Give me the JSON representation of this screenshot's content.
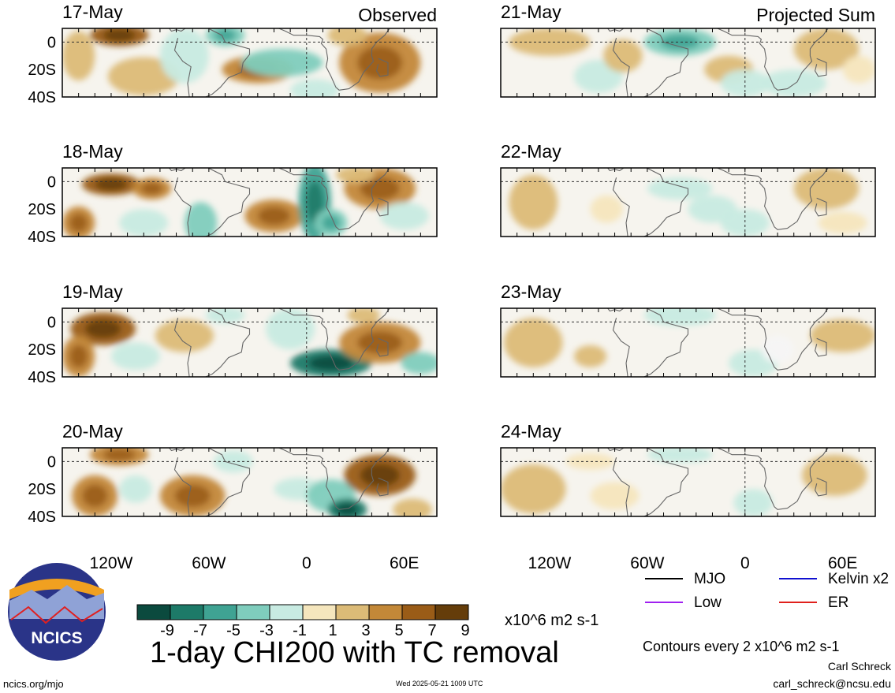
{
  "chart_data": {
    "type": "heatmap",
    "title": "1-day CHI200 with TC removal",
    "colorbar": {
      "ticks": [
        "-9",
        "-7",
        "-5",
        "-3",
        "-1",
        "1",
        "3",
        "5",
        "7",
        "9"
      ],
      "unit": "x10^6 m2 s-1",
      "colors": [
        "#0b4a3e",
        "#1d7a68",
        "#3fa393",
        "#7fcdbd",
        "#c8ebe2",
        "#f5f5f5",
        "#f5e6bd",
        "#dcbb77",
        "#c38838",
        "#9a5c17",
        "#653d0a"
      ]
    },
    "x_ticks": [
      "120W",
      "60W",
      "0",
      "60E"
    ],
    "y_ticks": [
      "0",
      "20S",
      "40S"
    ],
    "columns": [
      {
        "header": "Observed",
        "panels": [
          {
            "date": "17-May",
            "blobs": [
              {
                "lon": -115,
                "lat": 5,
                "rx": 18,
                "ry": 8,
                "v": 7
              },
              {
                "lon": -140,
                "lat": -10,
                "rx": 10,
                "ry": 18,
                "v": 4
              },
              {
                "lon": -100,
                "lat": -25,
                "rx": 22,
                "ry": 14,
                "v": 3
              },
              {
                "lon": -75,
                "lat": -10,
                "rx": 15,
                "ry": 20,
                "v": -2
              },
              {
                "lon": -50,
                "lat": 5,
                "rx": 12,
                "ry": 8,
                "v": -5
              },
              {
                "lon": -30,
                "lat": -20,
                "rx": 22,
                "ry": 10,
                "v": 5
              },
              {
                "lon": -15,
                "lat": -15,
                "rx": 25,
                "ry": 10,
                "v": -4
              },
              {
                "lon": 5,
                "lat": -35,
                "rx": 15,
                "ry": 8,
                "v": -3
              },
              {
                "lon": 45,
                "lat": -15,
                "rx": 25,
                "ry": 22,
                "v": 6
              },
              {
                "lon": 25,
                "lat": 5,
                "rx": 12,
                "ry": 8,
                "v": 3
              }
            ]
          },
          {
            "date": "18-May",
            "blobs": [
              {
                "lon": -120,
                "lat": -2,
                "rx": 18,
                "ry": 8,
                "v": 7
              },
              {
                "lon": -140,
                "lat": -30,
                "rx": 10,
                "ry": 12,
                "v": 5
              },
              {
                "lon": -95,
                "lat": -5,
                "rx": 12,
                "ry": 8,
                "v": 5
              },
              {
                "lon": -100,
                "lat": -30,
                "rx": 15,
                "ry": 10,
                "v": -3
              },
              {
                "lon": -65,
                "lat": -30,
                "rx": 10,
                "ry": 15,
                "v": -4
              },
              {
                "lon": -20,
                "lat": -25,
                "rx": 18,
                "ry": 12,
                "v": 6
              },
              {
                "lon": 5,
                "lat": -15,
                "rx": 10,
                "ry": 28,
                "v": -7
              },
              {
                "lon": 15,
                "lat": -30,
                "rx": 10,
                "ry": 10,
                "v": -5
              },
              {
                "lon": 45,
                "lat": -5,
                "rx": 22,
                "ry": 15,
                "v": 6
              },
              {
                "lon": 30,
                "lat": 5,
                "rx": 12,
                "ry": 6,
                "v": 4
              },
              {
                "lon": 60,
                "lat": -25,
                "rx": 15,
                "ry": 10,
                "v": -2
              }
            ]
          },
          {
            "date": "19-May",
            "blobs": [
              {
                "lon": -125,
                "lat": -5,
                "rx": 20,
                "ry": 12,
                "v": 7
              },
              {
                "lon": -140,
                "lat": -25,
                "rx": 10,
                "ry": 15,
                "v": 5
              },
              {
                "lon": -105,
                "lat": -25,
                "rx": 15,
                "ry": 10,
                "v": -3
              },
              {
                "lon": -75,
                "lat": -10,
                "rx": 18,
                "ry": 12,
                "v": 3
              },
              {
                "lon": -50,
                "lat": 5,
                "rx": 12,
                "ry": 6,
                "v": -3
              },
              {
                "lon": -10,
                "lat": -5,
                "rx": 15,
                "ry": 15,
                "v": -2
              },
              {
                "lon": 15,
                "lat": -30,
                "rx": 25,
                "ry": 10,
                "v": -9
              },
              {
                "lon": 45,
                "lat": -15,
                "rx": 25,
                "ry": 15,
                "v": 5
              },
              {
                "lon": 70,
                "lat": -30,
                "rx": 12,
                "ry": 8,
                "v": -4
              },
              {
                "lon": 35,
                "lat": 5,
                "rx": 10,
                "ry": 6,
                "v": 3
              }
            ]
          },
          {
            "date": "20-May",
            "blobs": [
              {
                "lon": -115,
                "lat": 5,
                "rx": 18,
                "ry": 8,
                "v": 6
              },
              {
                "lon": -130,
                "lat": -25,
                "rx": 14,
                "ry": 15,
                "v": 5
              },
              {
                "lon": -105,
                "lat": -20,
                "rx": 10,
                "ry": 10,
                "v": -2
              },
              {
                "lon": -70,
                "lat": -25,
                "rx": 20,
                "ry": 15,
                "v": 6
              },
              {
                "lon": -45,
                "lat": 0,
                "rx": 12,
                "ry": 8,
                "v": -3
              },
              {
                "lon": -5,
                "lat": -20,
                "rx": 15,
                "ry": 8,
                "v": -3
              },
              {
                "lon": 15,
                "lat": -25,
                "rx": 15,
                "ry": 12,
                "v": -4
              },
              {
                "lon": 25,
                "lat": -35,
                "rx": 12,
                "ry": 8,
                "v": -9
              },
              {
                "lon": 45,
                "lat": -10,
                "rx": 22,
                "ry": 15,
                "v": 7
              },
              {
                "lon": 65,
                "lat": -35,
                "rx": 12,
                "ry": 8,
                "v": 3
              }
            ]
          }
        ]
      },
      {
        "header": "Projected Sum",
        "panels": [
          {
            "date": "21-May",
            "blobs": [
              {
                "lon": -120,
                "lat": 0,
                "rx": 25,
                "ry": 10,
                "v": 3
              },
              {
                "lon": -90,
                "lat": -25,
                "rx": 15,
                "ry": 12,
                "v": -2
              },
              {
                "lon": -75,
                "lat": -10,
                "rx": 12,
                "ry": 12,
                "v": 3
              },
              {
                "lon": -40,
                "lat": 0,
                "rx": 22,
                "ry": 10,
                "v": -5
              },
              {
                "lon": -10,
                "lat": -20,
                "rx": 15,
                "ry": 10,
                "v": 3
              },
              {
                "lon": 0,
                "lat": -30,
                "rx": 15,
                "ry": 10,
                "v": -2
              },
              {
                "lon": 30,
                "lat": -30,
                "rx": 20,
                "ry": 10,
                "v": -2
              },
              {
                "lon": 50,
                "lat": -5,
                "rx": 20,
                "ry": 15,
                "v": 4
              },
              {
                "lon": 70,
                "lat": -20,
                "rx": 10,
                "ry": 10,
                "v": 2
              }
            ]
          },
          {
            "date": "22-May",
            "blobs": [
              {
                "lon": -130,
                "lat": -15,
                "rx": 15,
                "ry": 20,
                "v": 3
              },
              {
                "lon": -40,
                "lat": -5,
                "rx": 20,
                "ry": 8,
                "v": -3
              },
              {
                "lon": 0,
                "lat": -30,
                "rx": 15,
                "ry": 10,
                "v": -3
              },
              {
                "lon": -20,
                "lat": -20,
                "rx": 15,
                "ry": 10,
                "v": -2
              },
              {
                "lon": 50,
                "lat": -5,
                "rx": 20,
                "ry": 15,
                "v": 4
              },
              {
                "lon": 60,
                "lat": -30,
                "rx": 15,
                "ry": 8,
                "v": 2
              },
              {
                "lon": -85,
                "lat": -20,
                "rx": 10,
                "ry": 10,
                "v": 2
              }
            ]
          },
          {
            "date": "23-May",
            "blobs": [
              {
                "lon": -130,
                "lat": -15,
                "rx": 18,
                "ry": 18,
                "v": 3
              },
              {
                "lon": -95,
                "lat": -25,
                "rx": 10,
                "ry": 8,
                "v": 4
              },
              {
                "lon": -40,
                "lat": 5,
                "rx": 22,
                "ry": 8,
                "v": -3
              },
              {
                "lon": 5,
                "lat": -30,
                "rx": 15,
                "ry": 10,
                "v": -3
              },
              {
                "lon": 60,
                "lat": -10,
                "rx": 20,
                "ry": 12,
                "v": 3
              },
              {
                "lon": 20,
                "lat": -20,
                "rx": 10,
                "ry": 10,
                "v": -1
              }
            ]
          },
          {
            "date": "24-May",
            "blobs": [
              {
                "lon": -130,
                "lat": -20,
                "rx": 20,
                "ry": 18,
                "v": 3
              },
              {
                "lon": -80,
                "lat": -25,
                "rx": 15,
                "ry": 10,
                "v": 2
              },
              {
                "lon": -40,
                "lat": 5,
                "rx": 20,
                "ry": 6,
                "v": -2
              },
              {
                "lon": 5,
                "lat": -30,
                "rx": 12,
                "ry": 10,
                "v": -2
              },
              {
                "lon": 55,
                "lat": -10,
                "rx": 20,
                "ry": 15,
                "v": 3
              },
              {
                "lon": -95,
                "lat": 0,
                "rx": 15,
                "ry": 6,
                "v": 2
              }
            ]
          }
        ]
      }
    ],
    "contours": {
      "note": "Contours every 2 x10^6 m2 s-1",
      "legend": [
        {
          "label": "MJO",
          "color": "#000000"
        },
        {
          "label": "Kelvin x2",
          "color": "#1010d0"
        },
        {
          "label": "Low",
          "color": "#a020f0"
        },
        {
          "label": "ER",
          "color": "#e0201c"
        }
      ]
    }
  },
  "logo_text": "NCICS",
  "footer": {
    "site": "ncics.org/mjo",
    "timestamp": "Wed 2025-05-21 1009 UTC",
    "author": "Carl Schreck",
    "email": "carl_schreck@ncsu.edu"
  }
}
